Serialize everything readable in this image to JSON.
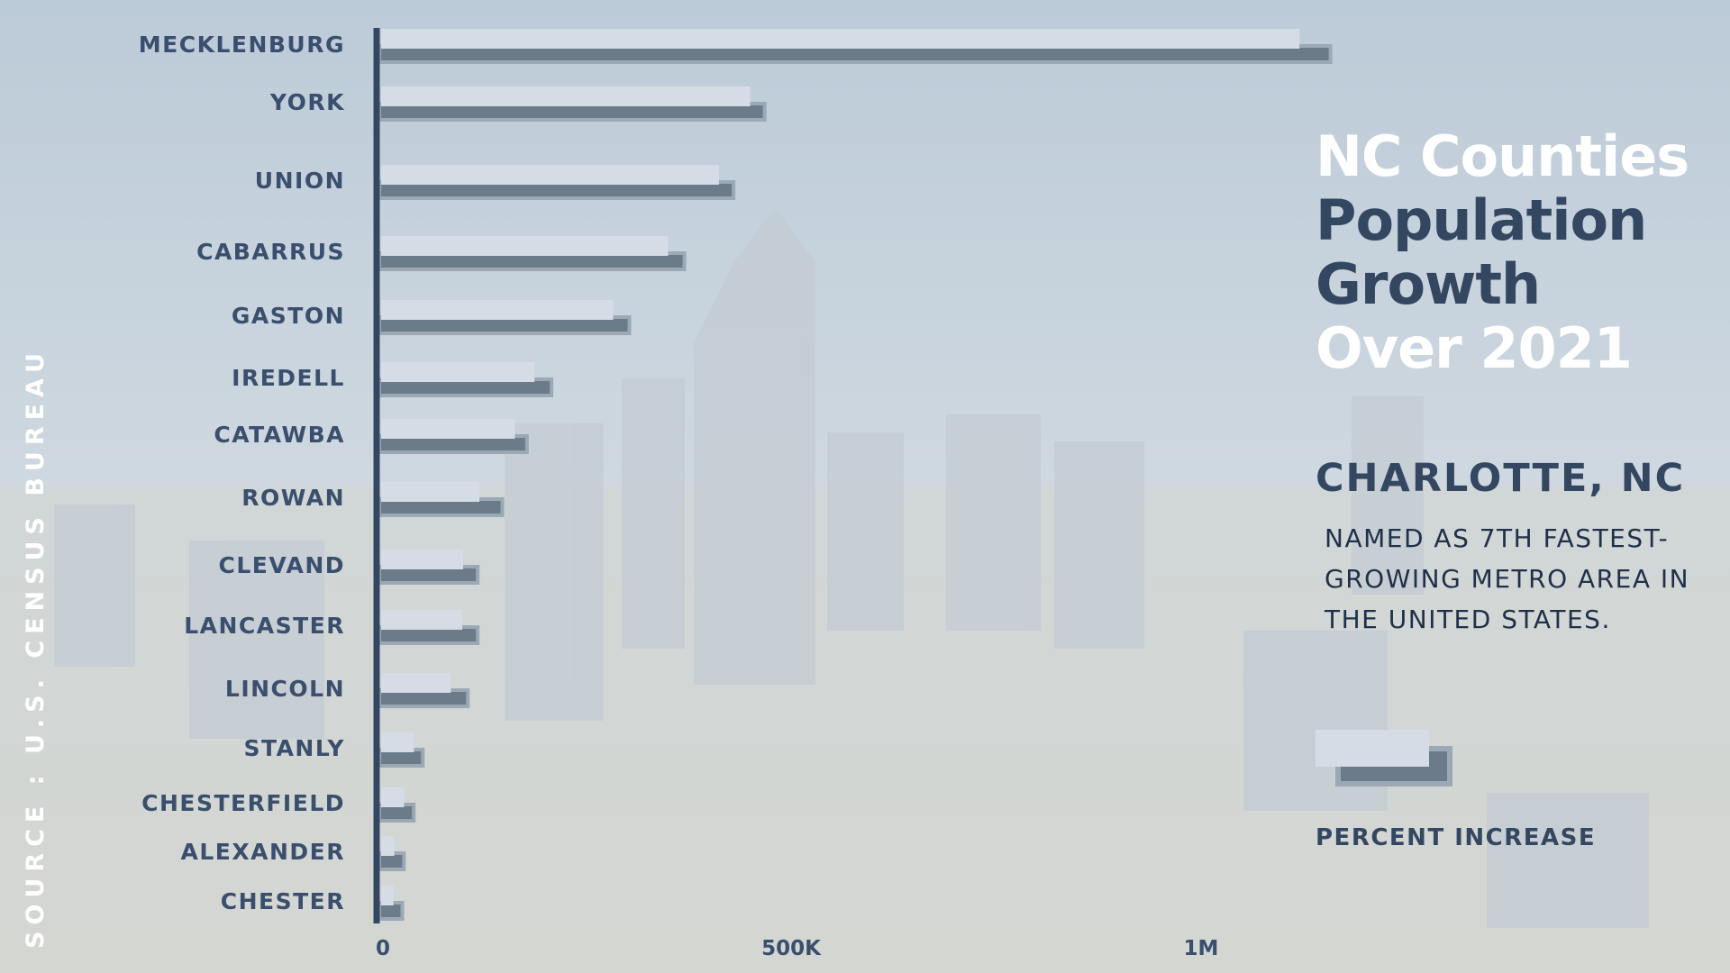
{
  "source": "SOURCE : U.S. CENSUS BUREAU",
  "title_lines": [
    "NC  Counties",
    "Population",
    "Growth",
    "Over 2021"
  ],
  "subtitle": "CHARLOTTE, NC",
  "description": "NAMED AS 7TH FASTEST-GROWING METRO AREA IN THE UNITED STATES.",
  "legend_label": "PERCENT INCREASE",
  "colors": {
    "axis": "#344761",
    "label": "#3a4f6e",
    "bar_light": "#d5dce6",
    "bar_dark": "#6c7b89",
    "bar_dark_outline": "#9ba8b6"
  },
  "chart_data": {
    "type": "bar",
    "orientation": "horizontal",
    "categories": [
      "MECKLENBURG",
      "YORK",
      "UNION",
      "CABARRUS",
      "GASTON",
      "IREDELL",
      "CATAWBA",
      "ROWAN",
      "CLEVAND",
      "LANCASTER",
      "LINCOLN",
      "STANLY",
      "CHESTERFIELD",
      "ALEXANDER",
      "CHESTER"
    ],
    "series": [
      {
        "values": [
          1120000,
          450000,
          412000,
          350000,
          283000,
          187000,
          163000,
          120000,
          100000,
          99000,
          85000,
          40000,
          28000,
          16000,
          15000
        ]
      },
      {
        "name": "PERCENT INCREASE",
        "values": [
          1160000,
          470000,
          432000,
          372000,
          305000,
          210000,
          180000,
          150000,
          120000,
          120000,
          108000,
          53000,
          42000,
          30000,
          28000
        ]
      }
    ],
    "x_ticks": [
      {
        "value": 0,
        "label": "0"
      },
      {
        "value": 500000,
        "label": "500K"
      },
      {
        "value": 1000000,
        "label": "1M"
      }
    ],
    "xlim": [
      0,
      1000000
    ],
    "grid": false,
    "legend_position": "right"
  }
}
